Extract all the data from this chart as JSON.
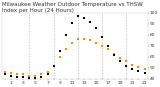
{
  "title": "Milwaukee Weather Outdoor Temperature vs THSW Index per Hour (24 Hours)",
  "background_color": "#ffffff",
  "plot_bg_color": "#ffffff",
  "grid_color": "#aaaaaa",
  "hours": [
    0,
    1,
    2,
    3,
    4,
    5,
    6,
    7,
    8,
    9,
    10,
    11,
    12,
    13,
    14,
    15,
    16,
    17,
    18,
    19,
    20,
    21,
    22,
    23
  ],
  "temp_F": [
    46,
    45,
    44,
    44,
    43,
    43,
    44,
    46,
    52,
    60,
    67,
    73,
    76,
    76,
    75,
    73,
    70,
    67,
    63,
    59,
    56,
    53,
    51,
    49
  ],
  "thsw": [
    44,
    43,
    42,
    42,
    41,
    41,
    42,
    44,
    52,
    65,
    80,
    91,
    97,
    95,
    92,
    86,
    78,
    70,
    62,
    56,
    52,
    49,
    47,
    45
  ],
  "temp_color": "#ff8800",
  "thsw_color": "#cc0000",
  "thsw_dot_color": "#000000",
  "tick_color": "#333333",
  "title_color": "#333333",
  "title_fontsize": 4.0,
  "tick_fontsize": 3.2,
  "ylim": [
    40,
    100
  ],
  "yticks": [
    40,
    50,
    60,
    70,
    80,
    90,
    100
  ],
  "vgrid_hours": [
    4,
    8,
    12,
    16,
    20
  ],
  "dot_size_temp": 2.0,
  "dot_size_thsw": 2.0
}
